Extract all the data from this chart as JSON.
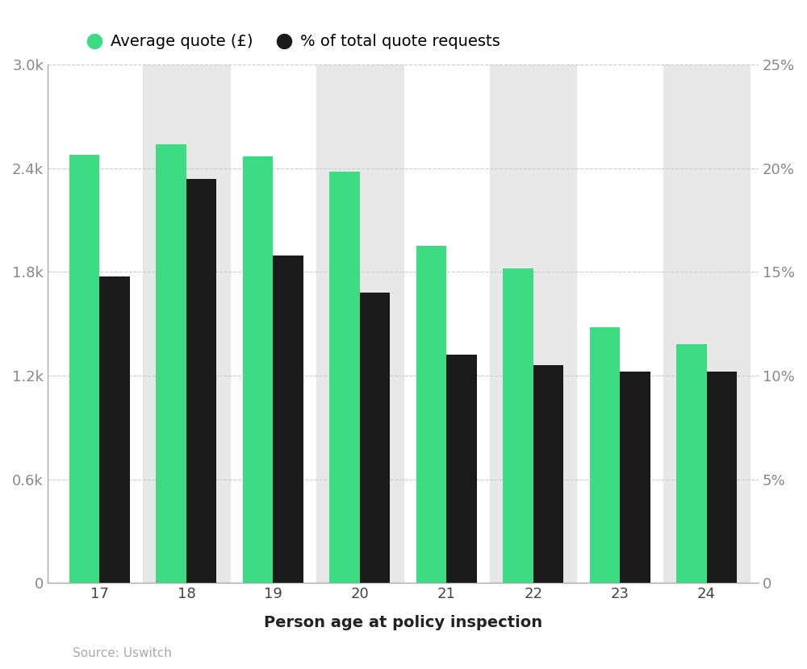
{
  "ages": [
    17,
    18,
    19,
    20,
    21,
    22,
    23,
    24
  ],
  "avg_quote": [
    2480,
    2540,
    2470,
    2380,
    1950,
    1820,
    1480,
    1380
  ],
  "pct_requests": [
    14.8,
    19.5,
    15.8,
    14.0,
    11.0,
    10.5,
    10.2,
    10.2
  ],
  "green_color": "#3ddc84",
  "black_color": "#1a1a1a",
  "bg_band_color": "#e8e8e8",
  "xlabel": "Person age at policy inspection",
  "ylim_left": [
    0,
    3000
  ],
  "ylim_right": [
    0,
    25
  ],
  "yticks_left": [
    0,
    600,
    1200,
    1800,
    2400,
    3000
  ],
  "ytick_labels_left": [
    "0",
    "0.6k",
    "1.2k",
    "1.8k",
    "2.4k",
    "3.0k"
  ],
  "yticks_right": [
    0,
    5,
    10,
    15,
    20,
    25
  ],
  "ytick_labels_right": [
    "0",
    "5%",
    "10%",
    "15%",
    "20%",
    "25%"
  ],
  "legend_label_green": "Average quote (£)",
  "legend_label_black": "% of total quote requests",
  "source_text": "Source: Uswitch",
  "bar_width": 0.35,
  "shaded_ages": [
    18,
    20,
    22,
    24
  ]
}
